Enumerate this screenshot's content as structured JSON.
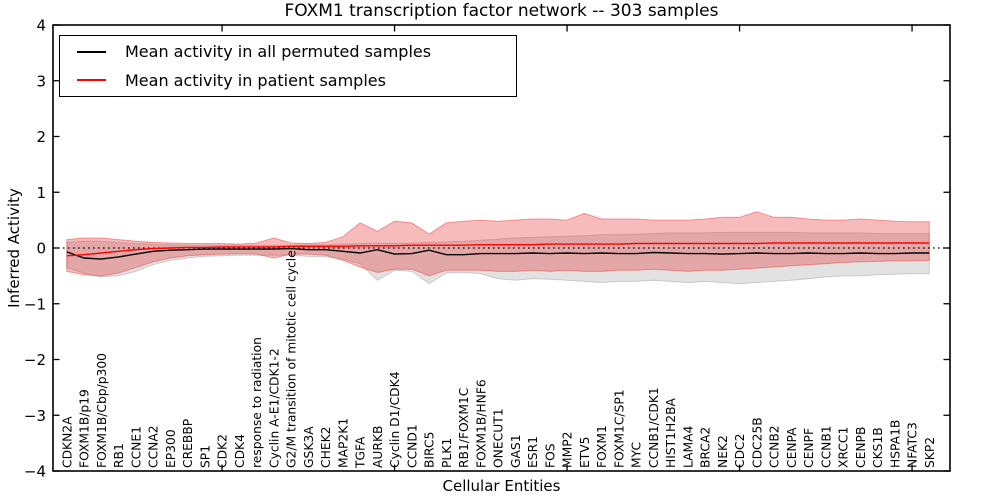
{
  "chart_data": {
    "type": "line",
    "title": "FOXM1 transcription factor network -- 303 samples",
    "xlabel": "Cellular Entities",
    "ylabel": "Inferred Activity",
    "ylim": [
      -4,
      4
    ],
    "grid": false,
    "legend_position": "upper left",
    "y_ticks": [
      {
        "value": 4,
        "label": "4"
      },
      {
        "value": 3,
        "label": "3"
      },
      {
        "value": 2,
        "label": "2"
      },
      {
        "value": 1,
        "label": "1"
      },
      {
        "value": 0,
        "label": "0"
      },
      {
        "value": -1,
        "label": "−1"
      },
      {
        "value": -2,
        "label": "−2"
      },
      {
        "value": -3,
        "label": "−3"
      },
      {
        "value": -4,
        "label": "−4"
      }
    ],
    "x_tick_positions": [
      9,
      19,
      29,
      39,
      49
    ],
    "zero_line": {
      "y": 0,
      "style": "dotted",
      "color": "#000000"
    },
    "categories": [
      "CDKN2A",
      "FOXM1B/p19",
      "FOXM1B/Cbp/p300",
      "RB1",
      "CCNE1",
      "CCNA2",
      "EP300",
      "CREBBP",
      "SP1",
      "CDK2",
      "CDK4",
      "response to radiation",
      "Cyclin A-E1/CDK1-2",
      "G2/M transition of mitotic cell cycle",
      "GSK3A",
      "CHEK2",
      "MAP2K1",
      "TGFA",
      "AURKB",
      "Cyclin D1/CDK4",
      "CCND1",
      "BIRC5",
      "PLK1",
      "RB1/FOXM1C",
      "FOXM1B/HNF6",
      "ONECUT1",
      "GAS1",
      "ESR1",
      "FOS",
      "MMP2",
      "ETV5",
      "FOXM1",
      "FOXM1C/SP1",
      "MYC",
      "CCNB1/CDK1",
      "HIST1H2BA",
      "LAMA4",
      "BRCA2",
      "NEK2",
      "CDC2",
      "CDC25B",
      "CCNB2",
      "CENPA",
      "CENPF",
      "CCNB1",
      "XRCC1",
      "CENPB",
      "CKS1B",
      "HSPA1B",
      "NFATC3",
      "SKP2"
    ],
    "series": [
      {
        "name": "Mean activity in all permuted samples",
        "color": "#000000",
        "values": [
          -0.07,
          -0.18,
          -0.2,
          -0.16,
          -0.11,
          -0.06,
          -0.04,
          -0.03,
          -0.02,
          -0.02,
          -0.02,
          -0.02,
          -0.02,
          -0.01,
          -0.03,
          -0.03,
          -0.06,
          -0.09,
          -0.03,
          -0.11,
          -0.1,
          -0.04,
          -0.12,
          -0.12,
          -0.1,
          -0.1,
          -0.1,
          -0.09,
          -0.1,
          -0.09,
          -0.1,
          -0.09,
          -0.1,
          -0.1,
          -0.08,
          -0.09,
          -0.1,
          -0.1,
          -0.11,
          -0.1,
          -0.09,
          -0.1,
          -0.1,
          -0.09,
          -0.1,
          -0.1,
          -0.09,
          -0.1,
          -0.1,
          -0.09,
          -0.09
        ]
      },
      {
        "name": "Mean activity in patient samples",
        "color": "#ff0000",
        "values": [
          -0.14,
          -0.12,
          -0.09,
          -0.06,
          -0.03,
          -0.01,
          0.0,
          0.01,
          0.01,
          0.02,
          0.02,
          0.02,
          0.02,
          0.03,
          0.03,
          0.03,
          0.03,
          0.04,
          0.04,
          0.04,
          0.05,
          0.05,
          0.05,
          0.05,
          0.06,
          0.06,
          0.06,
          0.06,
          0.07,
          0.07,
          0.07,
          0.07,
          0.07,
          0.08,
          0.08,
          0.08,
          0.08,
          0.08,
          0.08,
          0.08,
          0.08,
          0.09,
          0.09,
          0.09,
          0.09,
          0.09,
          0.09,
          0.09,
          0.09,
          0.09,
          0.09
        ]
      }
    ],
    "bands": [
      {
        "name": "permuted-samples-range",
        "color": "#8c8c8c",
        "opacity": 0.25,
        "upper": [
          0.1,
          0.12,
          0.12,
          0.1,
          0.08,
          0.07,
          0.06,
          0.05,
          0.05,
          0.05,
          0.05,
          0.05,
          0.05,
          0.05,
          0.06,
          0.06,
          0.07,
          0.08,
          0.09,
          0.08,
          0.09,
          0.1,
          0.11,
          0.12,
          0.14,
          0.16,
          0.18,
          0.19,
          0.2,
          0.21,
          0.22,
          0.24,
          0.24,
          0.25,
          0.26,
          0.27,
          0.27,
          0.27,
          0.28,
          0.28,
          0.28,
          0.28,
          0.28,
          0.27,
          0.27,
          0.27,
          0.27,
          0.26,
          0.26,
          0.26,
          0.26
        ],
        "lower": [
          -0.35,
          -0.45,
          -0.52,
          -0.5,
          -0.42,
          -0.3,
          -0.22,
          -0.18,
          -0.15,
          -0.14,
          -0.13,
          -0.13,
          -0.13,
          -0.13,
          -0.15,
          -0.16,
          -0.2,
          -0.28,
          -0.58,
          -0.4,
          -0.42,
          -0.64,
          -0.45,
          -0.44,
          -0.46,
          -0.55,
          -0.58,
          -0.55,
          -0.56,
          -0.58,
          -0.6,
          -0.62,
          -0.6,
          -0.6,
          -0.58,
          -0.6,
          -0.62,
          -0.6,
          -0.62,
          -0.64,
          -0.62,
          -0.6,
          -0.58,
          -0.55,
          -0.52,
          -0.5,
          -0.5,
          -0.48,
          -0.47,
          -0.46,
          -0.46
        ]
      },
      {
        "name": "patient-samples-range",
        "color": "#eb3232",
        "opacity": 0.33,
        "upper": [
          0.15,
          0.18,
          0.18,
          0.15,
          0.12,
          0.1,
          0.09,
          0.08,
          0.08,
          0.08,
          0.07,
          0.09,
          0.18,
          0.09,
          0.08,
          0.1,
          0.2,
          0.45,
          0.3,
          0.48,
          0.45,
          0.25,
          0.45,
          0.48,
          0.5,
          0.48,
          0.5,
          0.52,
          0.52,
          0.5,
          0.62,
          0.52,
          0.52,
          0.52,
          0.5,
          0.5,
          0.5,
          0.52,
          0.55,
          0.55,
          0.65,
          0.55,
          0.55,
          0.52,
          0.5,
          0.5,
          0.52,
          0.5,
          0.48,
          0.47,
          0.47
        ],
        "lower": [
          -0.42,
          -0.48,
          -0.5,
          -0.45,
          -0.35,
          -0.25,
          -0.18,
          -0.14,
          -0.12,
          -0.11,
          -0.1,
          -0.11,
          -0.18,
          -0.11,
          -0.11,
          -0.13,
          -0.22,
          -0.34,
          -0.44,
          -0.38,
          -0.38,
          -0.5,
          -0.4,
          -0.4,
          -0.4,
          -0.42,
          -0.42,
          -0.4,
          -0.42,
          -0.4,
          -0.42,
          -0.42,
          -0.4,
          -0.4,
          -0.38,
          -0.4,
          -0.42,
          -0.4,
          -0.4,
          -0.38,
          -0.36,
          -0.34,
          -0.32,
          -0.3,
          -0.28,
          -0.26,
          -0.25,
          -0.24,
          -0.23,
          -0.23,
          -0.22
        ]
      }
    ]
  },
  "legend": {
    "items": [
      {
        "label": "Mean activity in all permuted samples"
      },
      {
        "label": "Mean activity in patient samples"
      }
    ]
  }
}
